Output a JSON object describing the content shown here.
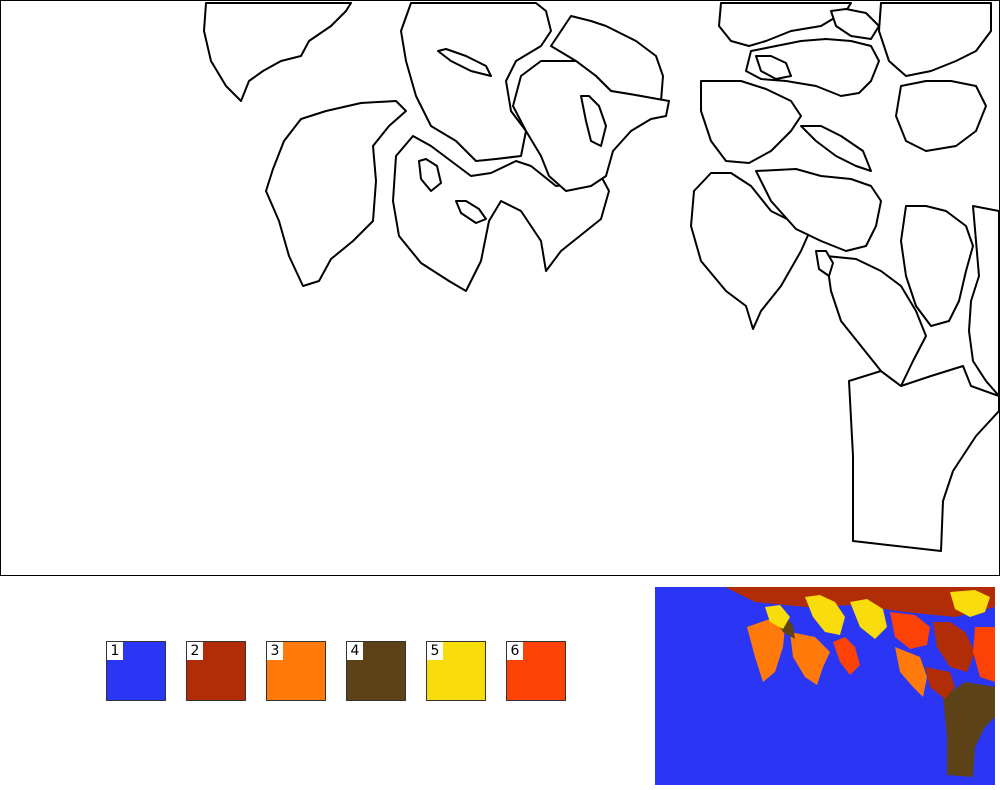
{
  "palette": {
    "colors": [
      {
        "number": "1",
        "hex": "#2a36f4"
      },
      {
        "number": "2",
        "hex": "#b02d08"
      },
      {
        "number": "3",
        "hex": "#ff7a0a"
      },
      {
        "number": "4",
        "hex": "#5c4216"
      },
      {
        "number": "5",
        "hex": "#f8dc0c"
      },
      {
        "number": "6",
        "hex": "#fc4206"
      }
    ]
  },
  "preview": {
    "sky": "#2a36f4",
    "trunk": "#5c4216"
  }
}
